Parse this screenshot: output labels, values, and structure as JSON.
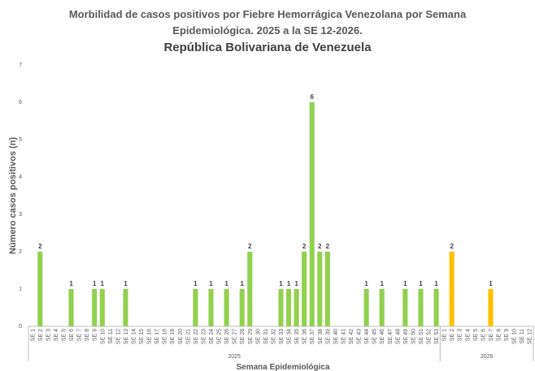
{
  "chart_data": {
    "type": "bar",
    "title": "Morbilidad de casos positivos por Fiebre Hemorrágica Venezolana por Semana",
    "title_line2": "Epidemiológica. 2025 a la SE 12-2026.",
    "subtitle": "República Bolivariana de Venezuela",
    "y_label": "Número casos positivos (n)",
    "x_label": "Semana Epidemiológica",
    "ylim": [
      0,
      7
    ],
    "yticks": [
      0,
      1,
      2,
      3,
      4,
      5,
      6,
      7
    ],
    "groups": [
      {
        "label": "2025",
        "color": "#92d050",
        "categories": [
          "SE 1",
          "SE 2",
          "SE 3",
          "SE 4",
          "SE 5",
          "SE 6",
          "SE 7",
          "SE 8",
          "SE 9",
          "SE 10",
          "SE 11",
          "SE 12",
          "SE 13",
          "SE 14",
          "SE 15",
          "SE 16",
          "SE 17",
          "SE 18",
          "SE 19",
          "SE 20",
          "SE 21",
          "SE 22",
          "SE 23",
          "SE 24",
          "SE 25",
          "SE 26",
          "SE 27",
          "SE 28",
          "SE 29",
          "SE 30",
          "SE 31",
          "SE 32",
          "SE 33",
          "SE 34",
          "SE 35",
          "SE 36",
          "SE 37",
          "SE 38",
          "SE 39",
          "SE 40",
          "SE 41",
          "SE 42",
          "SE 43",
          "SE 44",
          "SE 45",
          "SE 46",
          "SE 47",
          "SE 48",
          "SE 49",
          "SE 50",
          "SE 51",
          "SE 52",
          "SE 53"
        ],
        "values": [
          0,
          2,
          0,
          0,
          0,
          1,
          0,
          0,
          1,
          1,
          0,
          0,
          1,
          0,
          0,
          0,
          0,
          0,
          0,
          0,
          0,
          1,
          0,
          1,
          0,
          1,
          0,
          1,
          2,
          0,
          0,
          0,
          1,
          1,
          1,
          2,
          6,
          2,
          2,
          0,
          0,
          0,
          0,
          1,
          0,
          1,
          0,
          0,
          1,
          0,
          1,
          0,
          1
        ]
      },
      {
        "label": "2026",
        "color": "#ffc000",
        "categories": [
          "SE 1",
          "SE 2",
          "SE 3",
          "SE 4",
          "SE 5",
          "SE 6",
          "SE 7",
          "SE 8",
          "SE 9",
          "SE 10",
          "SE 11",
          "SE 12"
        ],
        "values": [
          0,
          2,
          0,
          0,
          0,
          0,
          1,
          0,
          0,
          0,
          0,
          0
        ]
      }
    ]
  }
}
